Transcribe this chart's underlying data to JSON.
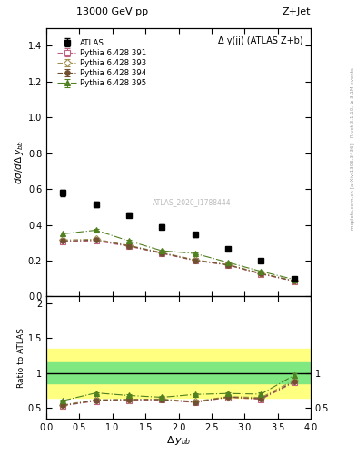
{
  "title_top": "13000 GeV pp",
  "title_right": "Z+Jet",
  "annotation": "Δ y(jj) (ATLAS Z+b)",
  "watermark": "ATLAS_2020_I1788444",
  "right_label_top": "Rivet 3.1.10, ≥ 3.1M events",
  "right_label_bot": "mcplots.cern.ch [arXiv:1306.3436]",
  "atlas_x": [
    0.25,
    0.75,
    1.25,
    1.75,
    2.25,
    2.75,
    3.25,
    3.75
  ],
  "atlas_y": [
    0.578,
    0.516,
    0.456,
    0.39,
    0.345,
    0.268,
    0.2,
    0.098
  ],
  "atlas_yerr": [
    0.02,
    0.015,
    0.015,
    0.013,
    0.012,
    0.01,
    0.008,
    0.006
  ],
  "py391_x": [
    0.25,
    0.75,
    1.25,
    1.75,
    2.25,
    2.75,
    3.25,
    3.75
  ],
  "py391_y": [
    0.308,
    0.31,
    0.28,
    0.24,
    0.2,
    0.175,
    0.125,
    0.085
  ],
  "py391_yerr": [
    0.005,
    0.005,
    0.005,
    0.005,
    0.005,
    0.004,
    0.004,
    0.003
  ],
  "py393_x": [
    0.25,
    0.75,
    1.25,
    1.75,
    2.25,
    2.75,
    3.25,
    3.75
  ],
  "py393_y": [
    0.315,
    0.32,
    0.285,
    0.245,
    0.205,
    0.178,
    0.13,
    0.088
  ],
  "py393_yerr": [
    0.005,
    0.005,
    0.005,
    0.005,
    0.005,
    0.004,
    0.004,
    0.003
  ],
  "py394_x": [
    0.25,
    0.75,
    1.25,
    1.75,
    2.25,
    2.75,
    3.25,
    3.75
  ],
  "py394_y": [
    0.31,
    0.315,
    0.283,
    0.242,
    0.202,
    0.176,
    0.127,
    0.086
  ],
  "py394_yerr": [
    0.005,
    0.005,
    0.005,
    0.005,
    0.005,
    0.004,
    0.004,
    0.003
  ],
  "py395_x": [
    0.25,
    0.75,
    1.25,
    1.75,
    2.25,
    2.75,
    3.25,
    3.75
  ],
  "py395_y": [
    0.35,
    0.37,
    0.31,
    0.255,
    0.24,
    0.19,
    0.14,
    0.095
  ],
  "py395_yerr": [
    0.006,
    0.006,
    0.006,
    0.005,
    0.005,
    0.004,
    0.004,
    0.003
  ],
  "color_391": "#c06080",
  "color_393": "#a09050",
  "color_394": "#705030",
  "color_395": "#508020",
  "band_yellow": [
    0.65,
    1.35
  ],
  "band_green": [
    0.85,
    1.15
  ],
  "xlim": [
    0.0,
    4.0
  ],
  "ylim_main": [
    0.0,
    1.5
  ],
  "ylim_ratio": [
    0.35,
    2.1
  ]
}
